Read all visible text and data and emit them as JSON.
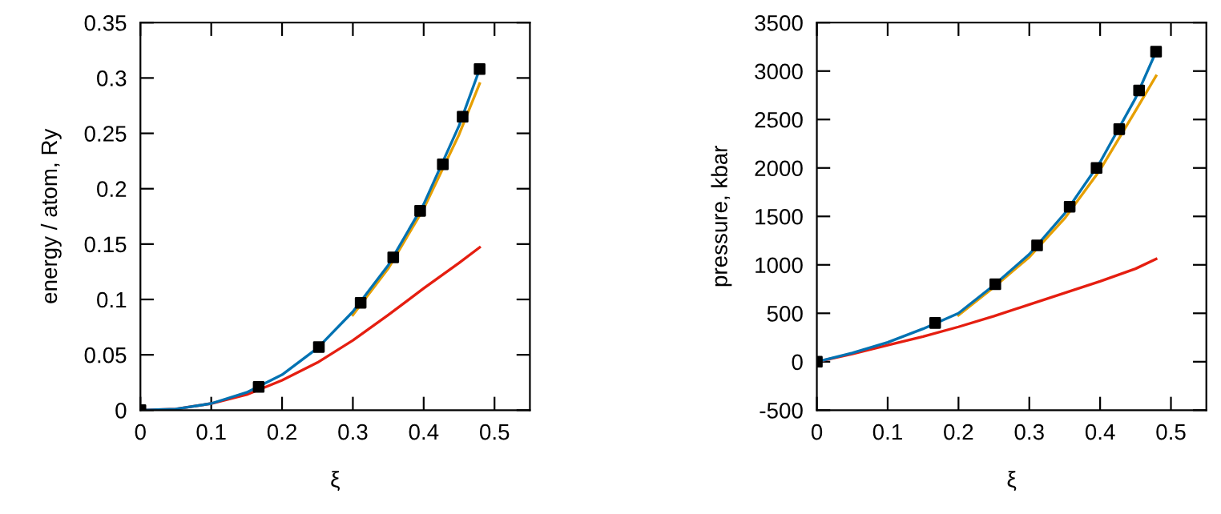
{
  "chart_data": [
    {
      "type": "line",
      "xlabel": "ξ",
      "ylabel": "energy / atom, Ry",
      "xlim": [
        0,
        0.55
      ],
      "ylim": [
        0,
        0.35
      ],
      "xticks": [
        0,
        0.1,
        0.2,
        0.3,
        0.4,
        0.5
      ],
      "yticks": [
        0,
        0.05,
        0.1,
        0.15,
        0.2,
        0.25,
        0.3,
        0.35
      ],
      "grid": false,
      "legend": false,
      "line_style": "solid",
      "x": [
        0,
        0.05,
        0.1,
        0.15,
        0.2,
        0.25,
        0.3,
        0.35,
        0.4,
        0.45,
        0.479
      ],
      "series": [
        {
          "color": "#e51e10",
          "values": [
            0,
            0.001,
            0.006,
            0.014,
            0.027,
            0.043,
            0.063,
            0.086,
            0.11,
            0.133,
            0.147
          ]
        },
        {
          "color": "#e69f00",
          "values": [
            null,
            null,
            null,
            null,
            null,
            null,
            0.086,
            0.128,
            0.182,
            0.249,
            0.295
          ]
        },
        {
          "color": "#0072b2",
          "values": [
            0,
            0.001,
            0.006,
            0.016,
            0.032,
            0.056,
            0.089,
            0.131,
            0.186,
            0.257,
            0.308
          ]
        },
        {
          "type": "scatter",
          "marker": "square",
          "color": "#000000",
          "x": [
            0,
            0.167,
            0.252,
            0.311,
            0.357,
            0.395,
            0.427,
            0.455,
            0.479
          ],
          "values": [
            0,
            0.021,
            0.057,
            0.097,
            0.138,
            0.18,
            0.222,
            0.265,
            0.308
          ]
        }
      ]
    },
    {
      "type": "line",
      "xlabel": "ξ",
      "ylabel": "pressure, kbar",
      "xlim": [
        0,
        0.55
      ],
      "ylim": [
        -500,
        3500
      ],
      "xticks": [
        0,
        0.1,
        0.2,
        0.3,
        0.4,
        0.5
      ],
      "yticks": [
        -500,
        0,
        500,
        1000,
        1500,
        2000,
        2500,
        3000,
        3500
      ],
      "grid": false,
      "legend": false,
      "line_style": "solid",
      "x": [
        0,
        0.05,
        0.1,
        0.15,
        0.2,
        0.25,
        0.3,
        0.35,
        0.4,
        0.45,
        0.479
      ],
      "series": [
        {
          "color": "#e51e10",
          "values": [
            0,
            80,
            170,
            260,
            360,
            470,
            590,
            710,
            830,
            960,
            1060
          ]
        },
        {
          "color": "#e69f00",
          "values": [
            null,
            null,
            null,
            null,
            480,
            770,
            1080,
            1480,
            1980,
            2590,
            2950
          ]
        },
        {
          "color": "#0072b2",
          "values": [
            0,
            90,
            200,
            340,
            500,
            790,
            1110,
            1530,
            2060,
            2720,
            3200
          ]
        },
        {
          "type": "scatter",
          "marker": "square",
          "color": "#000000",
          "x": [
            0,
            0.167,
            0.252,
            0.311,
            0.357,
            0.395,
            0.427,
            0.455,
            0.479
          ],
          "values": [
            0,
            400,
            800,
            1200,
            1600,
            2000,
            2400,
            2800,
            3200
          ]
        }
      ]
    }
  ]
}
